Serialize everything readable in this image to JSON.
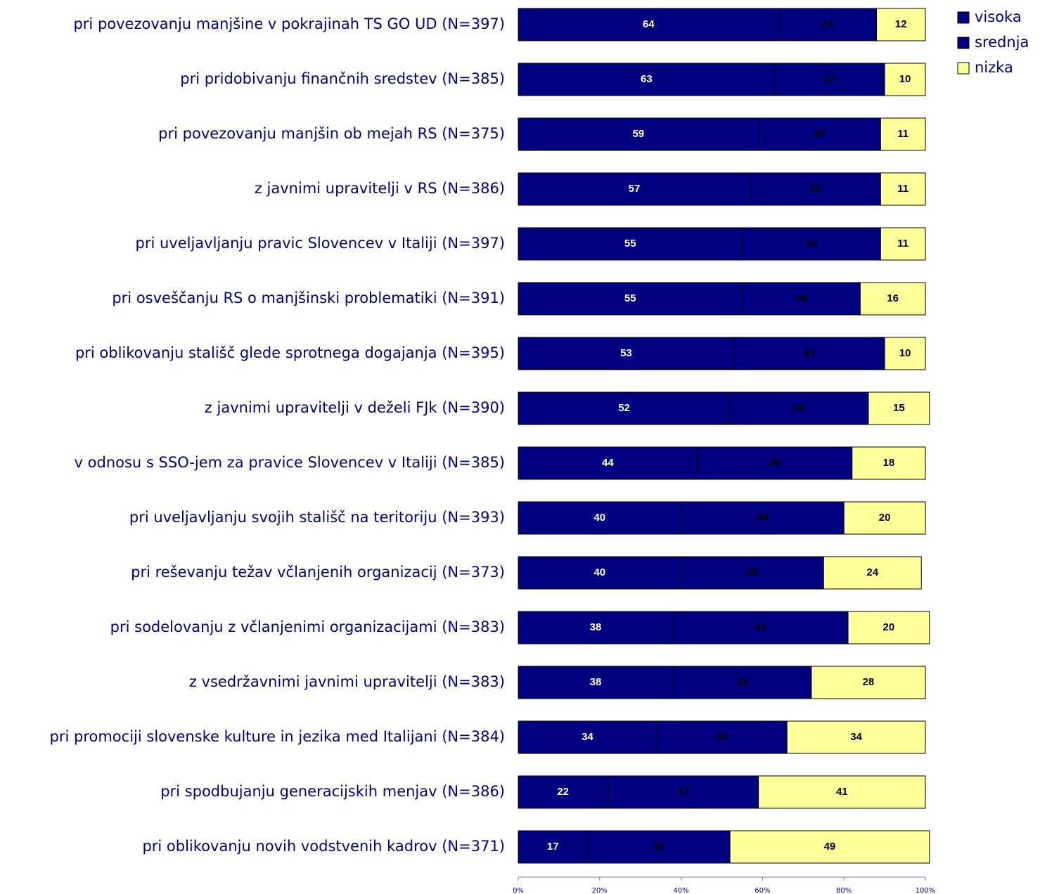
{
  "chart_data": {
    "type": "stacked_bar_horizontal",
    "categories": [
      "pri povezovanju manjšine v pokrajinah TS GO UD (N=397)",
      "pri pridobivanju finančnih sredstev (N=385)",
      "pri povezovanju manjšin ob mejah RS (N=375)",
      "z javnimi upravitelji v RS (N=386)",
      "pri uveljavljanju pravic Slovencev v Italiji (N=397)",
      "pri osveščanju RS o manjšinski problematiki (N=391)",
      "pri oblikovanju stališč glede sprotnega dogajanja (N=395)",
      "z javnimi upravitelji v deželi FJk (N=390)",
      "v odnosu s SSO-jem za pravice Slovencev v Italiji (N=385)",
      "pri uveljavljanju svojih stališč na teritoriju (N=393)",
      "pri reševanju težav včlanjenih organizacij (N=373)",
      "pri sodelovanju z včlanjenimi organizacijami (N=383)",
      "z vsedržavnimi javnimi upravitelji (N=383)",
      "pri promociji slovenske kulture in jezika med Italijani (N=384)",
      "pri spodbujanju generacijskih menjav (N=386)",
      "pri oblikovanju novih vodstvenih kadrov (N=371)"
    ],
    "series": [
      {
        "name": "visoka",
        "color": "#000080",
        "label_color": "#ffffff",
        "values": [
          64,
          63,
          59,
          57,
          55,
          55,
          53,
          52,
          44,
          40,
          40,
          38,
          38,
          34,
          22,
          17
        ]
      },
      {
        "name": "srednja",
        "color": "#000080",
        "label_color": "#000000",
        "values": [
          24,
          27,
          30,
          32,
          34,
          29,
          37,
          34,
          38,
          40,
          35,
          43,
          34,
          32,
          37,
          35
        ]
      },
      {
        "name": "nizka",
        "color": "#ffff99",
        "label_color": "#000000",
        "values": [
          12,
          10,
          11,
          11,
          11,
          16,
          10,
          15,
          18,
          20,
          24,
          20,
          28,
          34,
          41,
          49
        ]
      }
    ],
    "xlim": [
      0,
      100
    ],
    "xticks": [
      {
        "value": 0,
        "label": "0%"
      },
      {
        "value": 20,
        "label": "20%"
      },
      {
        "value": 40,
        "label": "40%"
      },
      {
        "value": 60,
        "label": "60%"
      },
      {
        "value": 80,
        "label": "80%"
      },
      {
        "value": 100,
        "label": "100%"
      }
    ],
    "legend": "top-right"
  }
}
